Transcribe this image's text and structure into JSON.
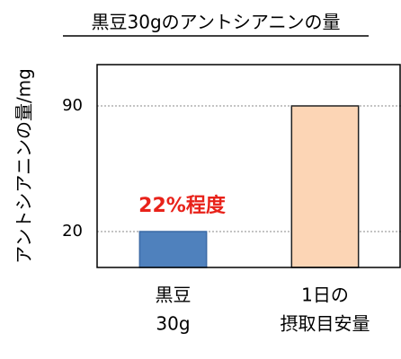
{
  "chart_data": {
    "type": "bar",
    "title": "黒豆30gのアントシアニンの量",
    "y_label": "アントシアニンの量/mg",
    "categories": [
      [
        "黒豆",
        "30g"
      ],
      [
        "1日の",
        "摂取目安量"
      ]
    ],
    "values": [
      20,
      90
    ],
    "colors": [
      "#4f81bd",
      "#fcd5b5"
    ],
    "edge_colors": [
      "#3a6aa5",
      "#222222"
    ],
    "ylim": [
      0,
      113
    ],
    "yticks": [
      20,
      90
    ],
    "grid": true,
    "annotation": {
      "text": "22%程度",
      "color": "#e8221a"
    }
  }
}
